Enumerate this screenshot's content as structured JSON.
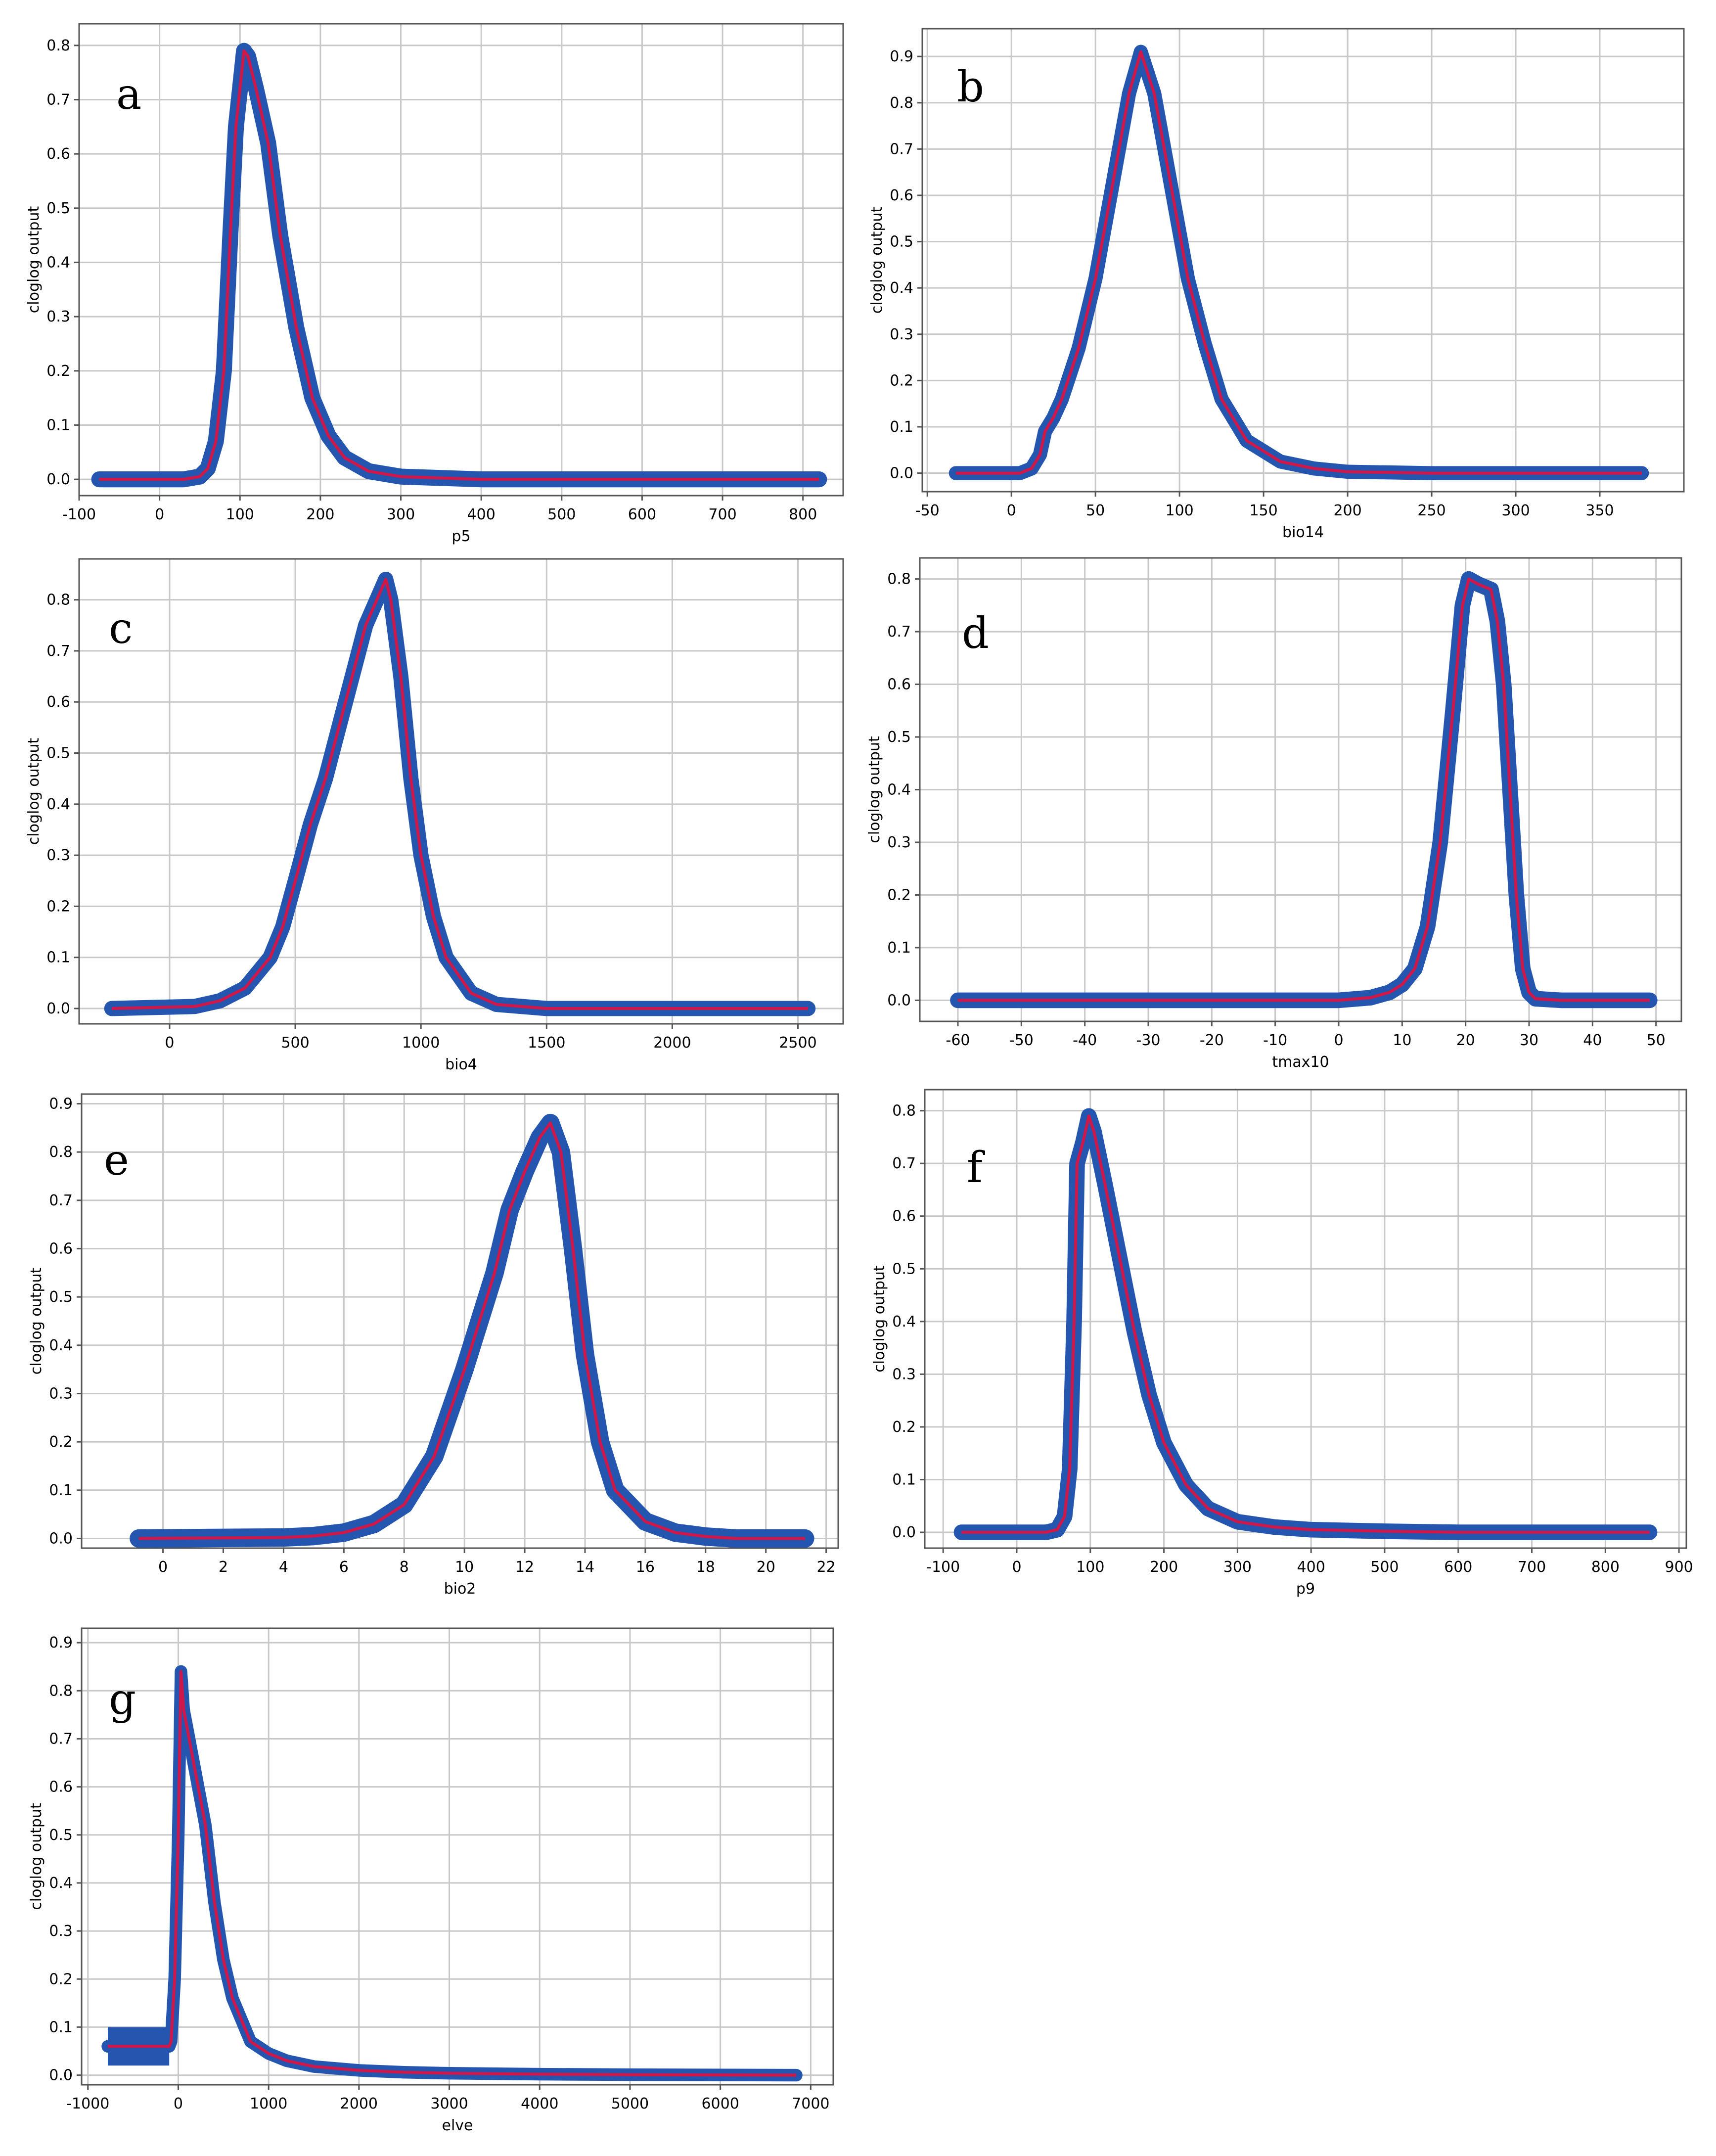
{
  "chart_data": [
    {
      "type": "line",
      "panel_label": "a",
      "xlabel": "p5",
      "ylabel": "cloglog output",
      "xlim": [
        -100,
        850
      ],
      "ylim": [
        -0.03,
        0.84
      ],
      "x_ticks": [
        -100,
        0,
        100,
        200,
        300,
        400,
        500,
        600,
        700,
        800
      ],
      "y_ticks": [
        0.0,
        0.1,
        0.2,
        0.3,
        0.4,
        0.5,
        0.6,
        0.7,
        0.8
      ],
      "y_tick_labels": [
        "0.0",
        "0.1",
        "0.2",
        "0.3",
        "0.4",
        "0.5",
        "0.6",
        "0.7",
        "0.8"
      ],
      "grid": true,
      "band_width": 0.012,
      "mean_color": "#d0174a",
      "band_color": "#2456b0",
      "series": [
        {
          "x": [
            -75,
            30,
            50,
            60,
            70,
            80,
            88,
            95,
            100,
            105,
            110,
            120,
            135,
            150,
            170,
            190,
            210,
            230,
            260,
            300,
            400,
            500,
            820
          ],
          "y": [
            0.0,
            0.0,
            0.005,
            0.02,
            0.07,
            0.2,
            0.45,
            0.65,
            0.72,
            0.79,
            0.78,
            0.72,
            0.62,
            0.45,
            0.28,
            0.15,
            0.08,
            0.04,
            0.015,
            0.005,
            0.0,
            0.0,
            0.0
          ]
        }
      ]
    },
    {
      "type": "line",
      "panel_label": "b",
      "xlabel": "bio14",
      "ylabel": "cloglog output",
      "xlim": [
        -53,
        400
      ],
      "ylim": [
        -0.04,
        0.96
      ],
      "x_ticks": [
        -50,
        0,
        50,
        100,
        150,
        200,
        250,
        300,
        350
      ],
      "y_ticks": [
        0.0,
        0.1,
        0.2,
        0.3,
        0.4,
        0.5,
        0.6,
        0.7,
        0.8,
        0.9
      ],
      "y_tick_labels": [
        "0.0",
        "0.1",
        "0.2",
        "0.3",
        "0.4",
        "0.5",
        "0.6",
        "0.7",
        "0.8",
        "0.9"
      ],
      "grid": true,
      "band_width": 0.012,
      "mean_color": "#d0174a",
      "band_color": "#2456b0",
      "series": [
        {
          "x": [
            -33,
            5,
            12,
            17,
            20,
            25,
            30,
            40,
            50,
            60,
            70,
            77,
            85,
            95,
            105,
            115,
            125,
            140,
            160,
            180,
            200,
            250,
            375
          ],
          "y": [
            0.0,
            0.0,
            0.01,
            0.04,
            0.09,
            0.12,
            0.16,
            0.27,
            0.42,
            0.62,
            0.82,
            0.91,
            0.82,
            0.62,
            0.42,
            0.28,
            0.16,
            0.07,
            0.025,
            0.01,
            0.003,
            0.0,
            0.0
          ]
        }
      ]
    },
    {
      "type": "line",
      "panel_label": "c",
      "xlabel": "bio4",
      "ylabel": "cloglog output",
      "xlim": [
        -360,
        2680
      ],
      "ylim": [
        -0.03,
        0.88
      ],
      "x_ticks": [
        0,
        500,
        1000,
        1500,
        2000,
        2500
      ],
      "y_ticks": [
        0.0,
        0.1,
        0.2,
        0.3,
        0.4,
        0.5,
        0.6,
        0.7,
        0.8
      ],
      "y_tick_labels": [
        "0.0",
        "0.1",
        "0.2",
        "0.3",
        "0.4",
        "0.5",
        "0.6",
        "0.7",
        "0.8"
      ],
      "grid": true,
      "band_width": 0.012,
      "mean_color": "#d0174a",
      "band_color": "#2456b0",
      "series": [
        {
          "x": [
            -230,
            100,
            200,
            300,
            400,
            450,
            500,
            560,
            620,
            700,
            780,
            860,
            880,
            920,
            960,
            1000,
            1050,
            1100,
            1200,
            1300,
            1500,
            2000,
            2540
          ],
          "y": [
            0.0,
            0.004,
            0.015,
            0.04,
            0.1,
            0.16,
            0.25,
            0.36,
            0.45,
            0.6,
            0.75,
            0.84,
            0.8,
            0.65,
            0.45,
            0.3,
            0.18,
            0.1,
            0.03,
            0.008,
            0.0,
            0.0,
            0.0
          ]
        }
      ]
    },
    {
      "type": "line",
      "panel_label": "d",
      "xlabel": "tmax10",
      "ylabel": "cloglog output",
      "xlim": [
        -66,
        54
      ],
      "ylim": [
        -0.04,
        0.84
      ],
      "x_ticks": [
        -60,
        -50,
        -40,
        -30,
        -20,
        -10,
        0,
        10,
        20,
        30,
        40,
        50
      ],
      "y_ticks": [
        0.0,
        0.1,
        0.2,
        0.3,
        0.4,
        0.5,
        0.6,
        0.7,
        0.8
      ],
      "y_tick_labels": [
        "0.0",
        "0.1",
        "0.2",
        "0.3",
        "0.4",
        "0.5",
        "0.6",
        "0.7",
        "0.8"
      ],
      "grid": true,
      "band_width": 0.012,
      "mean_color": "#d0174a",
      "band_color": "#2456b0",
      "series": [
        {
          "x": [
            -60,
            0,
            5,
            8,
            10,
            12,
            14,
            16,
            18,
            19.5,
            20.5,
            22,
            24,
            25,
            26,
            27,
            28,
            29,
            30,
            31,
            35,
            49
          ],
          "y": [
            0.0,
            0.0,
            0.005,
            0.015,
            0.03,
            0.06,
            0.14,
            0.3,
            0.55,
            0.75,
            0.8,
            0.79,
            0.78,
            0.72,
            0.6,
            0.4,
            0.2,
            0.06,
            0.015,
            0.003,
            0.0,
            0.0
          ]
        }
      ]
    },
    {
      "type": "line",
      "panel_label": "e",
      "xlabel": "bio2",
      "ylabel": "cloglog output",
      "xlim": [
        -2.7,
        22.4
      ],
      "ylim": [
        -0.02,
        0.92
      ],
      "x_ticks": [
        0,
        2,
        4,
        6,
        8,
        10,
        12,
        14,
        16,
        18,
        20,
        22
      ],
      "y_ticks": [
        0.0,
        0.1,
        0.2,
        0.3,
        0.4,
        0.5,
        0.6,
        0.7,
        0.8,
        0.9
      ],
      "y_tick_labels": [
        "0.0",
        "0.1",
        "0.2",
        "0.3",
        "0.4",
        "0.5",
        "0.6",
        "0.7",
        "0.8",
        "0.9"
      ],
      "grid": true,
      "band_width": 0.016,
      "mean_color": "#d0174a",
      "band_color": "#2456b0",
      "series": [
        {
          "x": [
            -0.8,
            4,
            5,
            6,
            7,
            8,
            9,
            10,
            11,
            11.5,
            12,
            12.5,
            12.85,
            13.2,
            13.6,
            14,
            14.5,
            15,
            16,
            17,
            18,
            19,
            21.3
          ],
          "y": [
            0.0,
            0.002,
            0.005,
            0.012,
            0.03,
            0.07,
            0.17,
            0.35,
            0.55,
            0.68,
            0.76,
            0.83,
            0.86,
            0.8,
            0.6,
            0.38,
            0.2,
            0.1,
            0.035,
            0.012,
            0.004,
            0.0,
            0.0
          ]
        }
      ]
    },
    {
      "type": "line",
      "panel_label": "f",
      "xlabel": "p9",
      "ylabel": "cloglog output",
      "xlim": [
        -125,
        910
      ],
      "ylim": [
        -0.03,
        0.84
      ],
      "x_ticks": [
        -100,
        0,
        100,
        200,
        300,
        400,
        500,
        600,
        700,
        800,
        900
      ],
      "y_ticks": [
        0.0,
        0.1,
        0.2,
        0.3,
        0.4,
        0.5,
        0.6,
        0.7,
        0.8
      ],
      "y_tick_labels": [
        "0.0",
        "0.1",
        "0.2",
        "0.3",
        "0.4",
        "0.5",
        "0.6",
        "0.7",
        "0.8"
      ],
      "grid": true,
      "band_width": 0.012,
      "mean_color": "#d0174a",
      "band_color": "#2456b0",
      "series": [
        {
          "x": [
            -75,
            40,
            55,
            65,
            72,
            78,
            82,
            90,
            98,
            105,
            120,
            140,
            160,
            180,
            200,
            230,
            260,
            300,
            350,
            400,
            500,
            600,
            860
          ],
          "y": [
            0.0,
            0.0,
            0.005,
            0.03,
            0.12,
            0.4,
            0.7,
            0.74,
            0.79,
            0.76,
            0.66,
            0.52,
            0.38,
            0.26,
            0.17,
            0.09,
            0.045,
            0.02,
            0.01,
            0.005,
            0.002,
            0.0,
            0.0
          ]
        }
      ]
    },
    {
      "type": "line",
      "panel_label": "g",
      "xlabel": "elve",
      "ylabel": "cloglog output",
      "xlim": [
        -1070,
        7250
      ],
      "ylim": [
        -0.02,
        0.93
      ],
      "x_ticks": [
        -1000,
        0,
        1000,
        2000,
        3000,
        4000,
        5000,
        6000,
        7000
      ],
      "y_ticks": [
        0.0,
        0.1,
        0.2,
        0.3,
        0.4,
        0.5,
        0.6,
        0.7,
        0.8,
        0.9
      ],
      "y_tick_labels": [
        "0.0",
        "0.1",
        "0.2",
        "0.3",
        "0.4",
        "0.5",
        "0.6",
        "0.7",
        "0.8",
        "0.9"
      ],
      "grid": true,
      "band_width": 0.01,
      "band_box": {
        "x0": -780,
        "x1": -100,
        "y0": 0.02,
        "y1": 0.1
      },
      "mean_color": "#d0174a",
      "band_color": "#2456b0",
      "series": [
        {
          "x": [
            -780,
            -100,
            -80,
            -40,
            0,
            30,
            60,
            100,
            200,
            300,
            400,
            500,
            600,
            800,
            1000,
            1200,
            1500,
            2000,
            2500,
            3000,
            4000,
            5000,
            6840
          ],
          "y": [
            0.06,
            0.06,
            0.07,
            0.2,
            0.5,
            0.84,
            0.76,
            0.72,
            0.62,
            0.52,
            0.36,
            0.24,
            0.16,
            0.07,
            0.045,
            0.03,
            0.018,
            0.01,
            0.006,
            0.004,
            0.002,
            0.001,
            0.0
          ]
        }
      ]
    }
  ]
}
